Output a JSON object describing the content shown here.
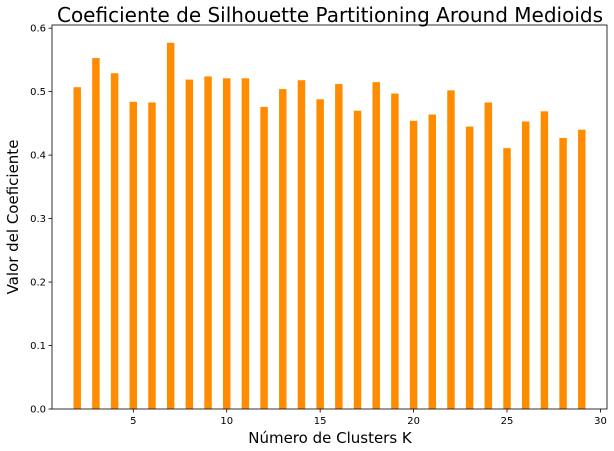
{
  "chart_data": {
    "type": "bar",
    "title": "Coeficiente de Silhouette Partitioning Around Medioids",
    "xlabel": "Número de Clusters K",
    "ylabel": "Valor del Coeficiente",
    "x": [
      2,
      3,
      4,
      5,
      6,
      7,
      8,
      9,
      10,
      11,
      12,
      13,
      14,
      15,
      16,
      17,
      18,
      19,
      20,
      21,
      22,
      23,
      24,
      25,
      26,
      27,
      28,
      29
    ],
    "values": [
      0.507,
      0.553,
      0.529,
      0.484,
      0.483,
      0.577,
      0.519,
      0.524,
      0.521,
      0.521,
      0.476,
      0.504,
      0.518,
      0.488,
      0.512,
      0.47,
      0.515,
      0.497,
      0.454,
      0.464,
      0.502,
      0.445,
      0.483,
      0.411,
      0.453,
      0.469,
      0.427,
      0.44
    ],
    "xlim": [
      0.65,
      30.35
    ],
    "ylim": [
      0,
      0.605
    ],
    "xticks": [
      5,
      10,
      15,
      20,
      25,
      30
    ],
    "xtick_labels": [
      "5",
      "10",
      "15",
      "20",
      "25",
      "30"
    ],
    "yticks": [
      0,
      0.1,
      0.2,
      0.3,
      0.4,
      0.5,
      0.6
    ],
    "ytick_labels": [
      "0.0",
      "0.1",
      "0.2",
      "0.3",
      "0.4",
      "0.5",
      "0.6"
    ],
    "bar_color": "#ff8c00",
    "grid": false,
    "legend": "none"
  }
}
